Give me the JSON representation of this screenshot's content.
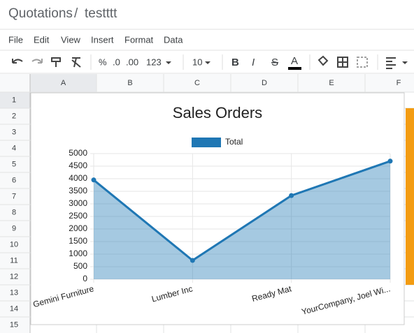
{
  "header": {
    "breadcrumb": [
      "Quotations",
      "testttt"
    ],
    "separator": "/"
  },
  "menu": [
    "File",
    "Edit",
    "View",
    "Insert",
    "Format",
    "Data"
  ],
  "toolbar": {
    "percent": "%",
    "decrease_decimals": ".0",
    "increase_decimals": ".00",
    "number_format": "123",
    "font_size": "10",
    "bold": "B",
    "italic": "I",
    "strikethrough": "S",
    "text_color": "A"
  },
  "grid": {
    "columns": [
      "A",
      "B",
      "C",
      "D",
      "E",
      "F"
    ],
    "rows": [
      "1",
      "2",
      "3",
      "4",
      "5",
      "6",
      "7",
      "8",
      "9",
      "10",
      "11",
      "12",
      "13",
      "14",
      "15"
    ]
  },
  "chart_data": {
    "type": "area",
    "title": "Sales Orders",
    "categories": [
      "Gemini Furniture",
      "Lumber Inc",
      "Ready Mat",
      "YourCompany, Joel Wi..."
    ],
    "series": [
      {
        "name": "Total",
        "color": "#1f77b4",
        "values": [
          3950,
          750,
          3330,
          4700
        ]
      }
    ],
    "ylim": [
      0,
      5000
    ],
    "yticks": [
      0,
      500,
      1000,
      1500,
      2000,
      2500,
      3000,
      3500,
      4000,
      4500,
      5000
    ],
    "grid": true,
    "legend": "top"
  }
}
